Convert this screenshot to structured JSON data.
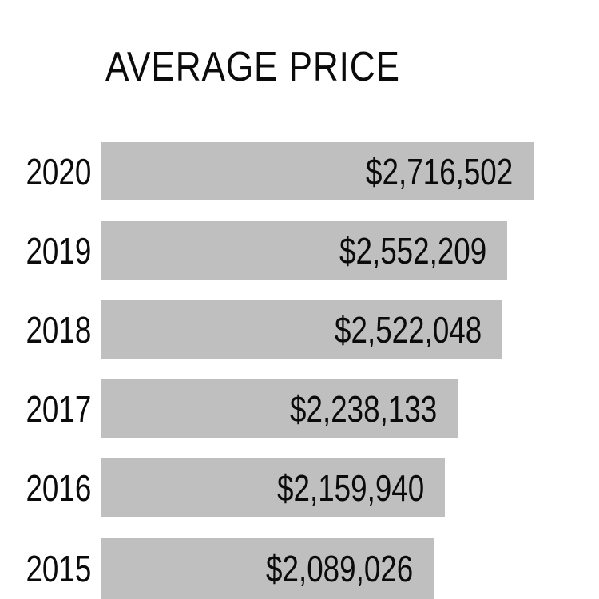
{
  "title": "AVERAGE PRICE",
  "chart_data": {
    "type": "bar",
    "orientation": "horizontal",
    "title": "AVERAGE PRICE",
    "categories": [
      "2020",
      "2019",
      "2018",
      "2017",
      "2016",
      "2015"
    ],
    "values": [
      2716502,
      2552209,
      2522048,
      2238133,
      2159940,
      2089026
    ],
    "value_labels": [
      "$2,716,502",
      "$2,552,209",
      "$2,522,048",
      "$2,238,133",
      "$2,159,940",
      "$2,089,026"
    ],
    "xlabel": "",
    "ylabel": "",
    "xlim": [
      0,
      2716502
    ],
    "grid": false,
    "legend": false,
    "value_label_position": "inside-end",
    "bar_color": "#bfbfbf",
    "text_color": "#0b0b0b",
    "background_color": "#ffffff"
  }
}
